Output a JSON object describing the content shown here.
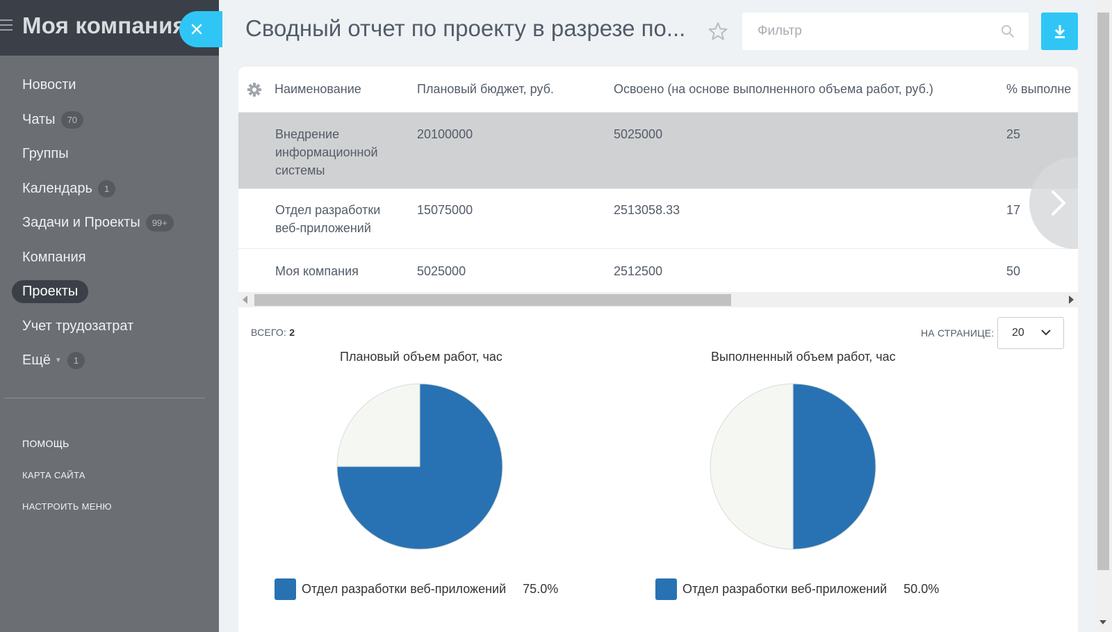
{
  "sidebar": {
    "title": "Моя компания",
    "items": [
      {
        "label": "Новости",
        "badge": ""
      },
      {
        "label": "Чаты",
        "badge": "70"
      },
      {
        "label": "Группы",
        "badge": ""
      },
      {
        "label": "Календарь",
        "badge": "1"
      },
      {
        "label": "Задачи и Проекты",
        "badge": "99+"
      },
      {
        "label": "Компания",
        "badge": ""
      },
      {
        "label": "Проекты",
        "badge": ""
      },
      {
        "label": "Учет трудозатрат",
        "badge": ""
      },
      {
        "label": "Ещё",
        "badge": "1"
      }
    ],
    "footer": [
      "ПОМОЩЬ",
      "КАРТА САЙТА",
      "НАСТРОИТЬ МЕНЮ"
    ]
  },
  "header": {
    "title": "Сводный отчет по проекту в разрезе по...",
    "filter_placeholder": "Фильтр"
  },
  "table": {
    "columns": [
      "Наименование",
      "Плановый бюджет, руб.",
      "Освоено (на основе выполненного объема работ, руб.)",
      "% выполне"
    ],
    "rows": [
      {
        "name": "Внедрение информационной системы",
        "budget": "20100000",
        "spent": "5025000",
        "percent": "25"
      },
      {
        "name": "Отдел разработки веб-приложений",
        "budget": "15075000",
        "spent": "2513058.33",
        "percent": "17"
      },
      {
        "name": "Моя компания",
        "budget": "5025000",
        "spent": "2512500",
        "percent": "50"
      }
    ]
  },
  "pager": {
    "total_label": "ВСЕГО:",
    "total_value": "2",
    "per_page_label": "НА СТРАНИЦЕ:",
    "per_page_value": "20"
  },
  "chart_data": [
    {
      "type": "pie",
      "title": "Плановый объем работ, час",
      "slices": [
        {
          "label": "Отдел разработки веб-приложений",
          "value": 75.0,
          "value_label": "75.0%",
          "color": "#2872b3"
        },
        {
          "label": "",
          "value": 25.0,
          "color": "#f4f7f2"
        }
      ]
    },
    {
      "type": "pie",
      "title": "Выполненный объем работ, час",
      "slices": [
        {
          "label": "Отдел разработки веб-приложений",
          "value": 50.0,
          "value_label": "50.0%",
          "color": "#2872b3"
        },
        {
          "label": "",
          "value": 50.0,
          "color": "#f4f7f2"
        }
      ]
    }
  ],
  "colors": {
    "accent": "#2fc6f6",
    "sidebar": "#6b6e73",
    "sidebar_header": "#3b4048",
    "pie_blue": "#2872b3"
  }
}
